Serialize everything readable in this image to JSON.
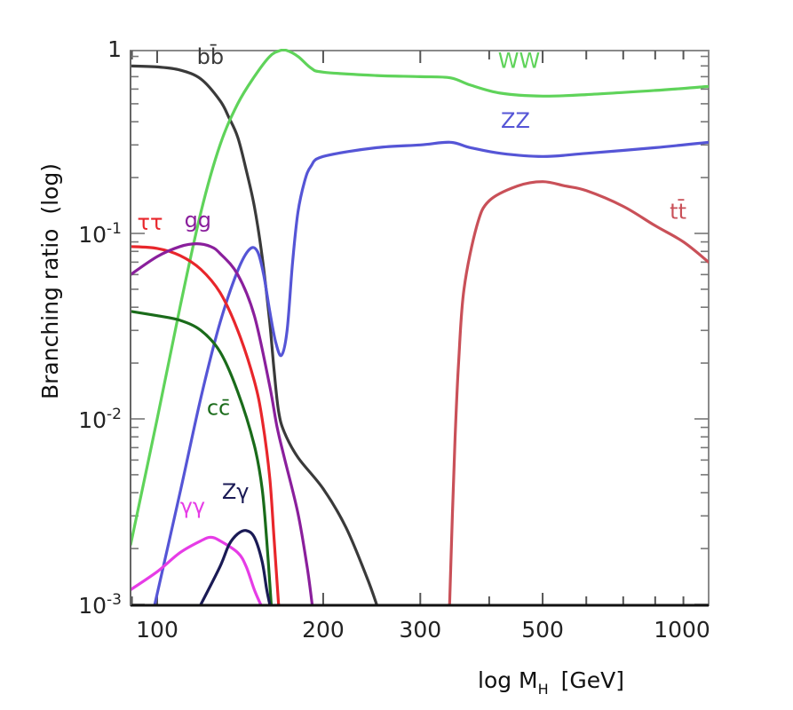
{
  "chart_data": {
    "type": "line",
    "title": "",
    "xlabel": "log M_H [GeV]",
    "xlabel_parts": {
      "main": "log M",
      "sub": "H",
      "unit": "[GeV]"
    },
    "ylabel": "Branching ratio  (log)",
    "xscale": "log",
    "yscale": "log",
    "xlim": [
      89.5,
      1000
    ],
    "ylim": [
      0.001,
      1
    ],
    "grid": false,
    "legend": "inline labels",
    "x_ticks": [
      {
        "value": 100,
        "label": "100"
      },
      {
        "value": 200,
        "label": "200"
      },
      {
        "value": 300,
        "label": "300"
      },
      {
        "value": 500,
        "label": "500"
      },
      {
        "value": 1000,
        "label": "1000"
      }
    ],
    "y_ticks": [
      {
        "value": 1,
        "label": "1",
        "base": "1",
        "exp": ""
      },
      {
        "value": 0.1,
        "label": "10^-1",
        "base": "10",
        "exp": "-1"
      },
      {
        "value": 0.01,
        "label": "10^-2",
        "base": "10",
        "exp": "-2"
      },
      {
        "value": 0.001,
        "label": "10^-3",
        "base": "10",
        "exp": "-3"
      }
    ],
    "series": [
      {
        "name": "bb̄",
        "label": "bb̄",
        "color": "#3a3a3a",
        "points": [
          [
            89.5,
            0.8
          ],
          [
            100,
            0.79
          ],
          [
            110,
            0.76
          ],
          [
            120,
            0.68
          ],
          [
            130,
            0.52
          ],
          [
            135,
            0.42
          ],
          [
            140,
            0.33
          ],
          [
            145,
            0.22
          ],
          [
            150,
            0.14
          ],
          [
            155,
            0.075
          ],
          [
            160,
            0.033
          ],
          [
            163,
            0.018
          ],
          [
            166,
            0.011
          ],
          [
            170,
            0.0085
          ],
          [
            180,
            0.0062
          ],
          [
            200,
            0.0042
          ],
          [
            220,
            0.0026
          ],
          [
            240,
            0.0014
          ],
          [
            250,
            0.001
          ]
        ]
      },
      {
        "name": "WW",
        "label": "WW",
        "color": "#5fd35a",
        "points": [
          [
            89.5,
            0.0021
          ],
          [
            100,
            0.01
          ],
          [
            110,
            0.04
          ],
          [
            120,
            0.13
          ],
          [
            130,
            0.3
          ],
          [
            140,
            0.5
          ],
          [
            150,
            0.7
          ],
          [
            160,
            0.9
          ],
          [
            167,
            0.98
          ],
          [
            172,
            0.98
          ],
          [
            180,
            0.9
          ],
          [
            190,
            0.78
          ],
          [
            200,
            0.74
          ],
          [
            250,
            0.71
          ],
          [
            300,
            0.7
          ],
          [
            340,
            0.69
          ],
          [
            370,
            0.63
          ],
          [
            420,
            0.57
          ],
          [
            500,
            0.55
          ],
          [
            600,
            0.56
          ],
          [
            800,
            0.59
          ],
          [
            1000,
            0.62
          ]
        ]
      },
      {
        "name": "ZZ",
        "label": "ZZ",
        "color": "#5555d6",
        "points": [
          [
            99,
            0.001
          ],
          [
            110,
            0.004
          ],
          [
            120,
            0.013
          ],
          [
            130,
            0.033
          ],
          [
            140,
            0.063
          ],
          [
            147,
            0.082
          ],
          [
            152,
            0.08
          ],
          [
            156,
            0.06
          ],
          [
            160,
            0.038
          ],
          [
            164,
            0.026
          ],
          [
            168,
            0.022
          ],
          [
            172,
            0.03
          ],
          [
            176,
            0.07
          ],
          [
            180,
            0.13
          ],
          [
            185,
            0.19
          ],
          [
            190,
            0.23
          ],
          [
            200,
            0.26
          ],
          [
            250,
            0.29
          ],
          [
            300,
            0.3
          ],
          [
            340,
            0.31
          ],
          [
            370,
            0.29
          ],
          [
            420,
            0.27
          ],
          [
            500,
            0.26
          ],
          [
            600,
            0.27
          ],
          [
            800,
            0.29
          ],
          [
            1000,
            0.31
          ]
        ]
      },
      {
        "name": "ττ",
        "label": "ττ",
        "color": "#e8262b",
        "points": [
          [
            89.5,
            0.085
          ],
          [
            100,
            0.083
          ],
          [
            110,
            0.076
          ],
          [
            120,
            0.064
          ],
          [
            130,
            0.048
          ],
          [
            140,
            0.03
          ],
          [
            150,
            0.016
          ],
          [
            155,
            0.01
          ],
          [
            160,
            0.0048
          ],
          [
            163,
            0.0022
          ],
          [
            166,
            0.001
          ]
        ]
      },
      {
        "name": "gg",
        "label": "gg",
        "color": "#8a1f9c",
        "points": [
          [
            89.5,
            0.06
          ],
          [
            100,
            0.075
          ],
          [
            110,
            0.085
          ],
          [
            118,
            0.088
          ],
          [
            125,
            0.085
          ],
          [
            130,
            0.078
          ],
          [
            140,
            0.06
          ],
          [
            150,
            0.036
          ],
          [
            160,
            0.015
          ],
          [
            165,
            0.009
          ],
          [
            170,
            0.0062
          ],
          [
            180,
            0.0031
          ],
          [
            187,
            0.0016
          ],
          [
            191,
            0.001
          ]
        ]
      },
      {
        "name": "cc̄",
        "label": "cc̄",
        "color": "#1a6b1a",
        "points": [
          [
            89.5,
            0.038
          ],
          [
            100,
            0.036
          ],
          [
            110,
            0.034
          ],
          [
            120,
            0.03
          ],
          [
            130,
            0.023
          ],
          [
            140,
            0.014
          ],
          [
            150,
            0.0072
          ],
          [
            155,
            0.0042
          ],
          [
            158,
            0.0022
          ],
          [
            161,
            0.001
          ]
        ]
      },
      {
        "name": "γγ",
        "label": "γγ",
        "color": "#e63ce6",
        "points": [
          [
            89.5,
            0.0012
          ],
          [
            100,
            0.0015
          ],
          [
            110,
            0.0019
          ],
          [
            120,
            0.0022
          ],
          [
            125,
            0.0023
          ],
          [
            130,
            0.0022
          ],
          [
            140,
            0.0019
          ],
          [
            145,
            0.0016
          ],
          [
            150,
            0.0012
          ],
          [
            154,
            0.001
          ]
        ]
      },
      {
        "name": "Zγ",
        "label": "Zγ",
        "color": "#1a1a55",
        "points": [
          [
            120,
            0.001
          ],
          [
            130,
            0.0016
          ],
          [
            135,
            0.0021
          ],
          [
            140,
            0.0024
          ],
          [
            145,
            0.0025
          ],
          [
            150,
            0.0023
          ],
          [
            155,
            0.0017
          ],
          [
            158,
            0.0012
          ],
          [
            160,
            0.001
          ]
        ]
      },
      {
        "name": "tt̄",
        "label": "tt̄",
        "color": "#c95058",
        "points": [
          [
            339,
            0.001
          ],
          [
            343,
            0.003
          ],
          [
            347,
            0.008
          ],
          [
            352,
            0.02
          ],
          [
            360,
            0.05
          ],
          [
            380,
            0.11
          ],
          [
            400,
            0.15
          ],
          [
            450,
            0.18
          ],
          [
            500,
            0.19
          ],
          [
            550,
            0.18
          ],
          [
            600,
            0.17
          ],
          [
            700,
            0.14
          ],
          [
            800,
            0.11
          ],
          [
            900,
            0.09
          ],
          [
            1000,
            0.07
          ]
        ]
      }
    ],
    "series_label_anchors": [
      {
        "series": "bb̄",
        "x": 118,
        "y": 0.82
      },
      {
        "series": "WW",
        "x": 415,
        "y": 0.78
      },
      {
        "series": "ZZ",
        "x": 420,
        "y": 0.37
      },
      {
        "series": "ττ",
        "x": 92,
        "y": 0.105
      },
      {
        "series": "gg",
        "x": 112,
        "y": 0.108
      },
      {
        "series": "cc̄",
        "x": 123,
        "y": 0.0105
      },
      {
        "series": "γγ",
        "x": 110,
        "y": 0.0031
      },
      {
        "series": "Zγ",
        "x": 131,
        "y": 0.0037
      },
      {
        "series": "tt̄",
        "x": 850,
        "y": 0.12
      }
    ]
  }
}
